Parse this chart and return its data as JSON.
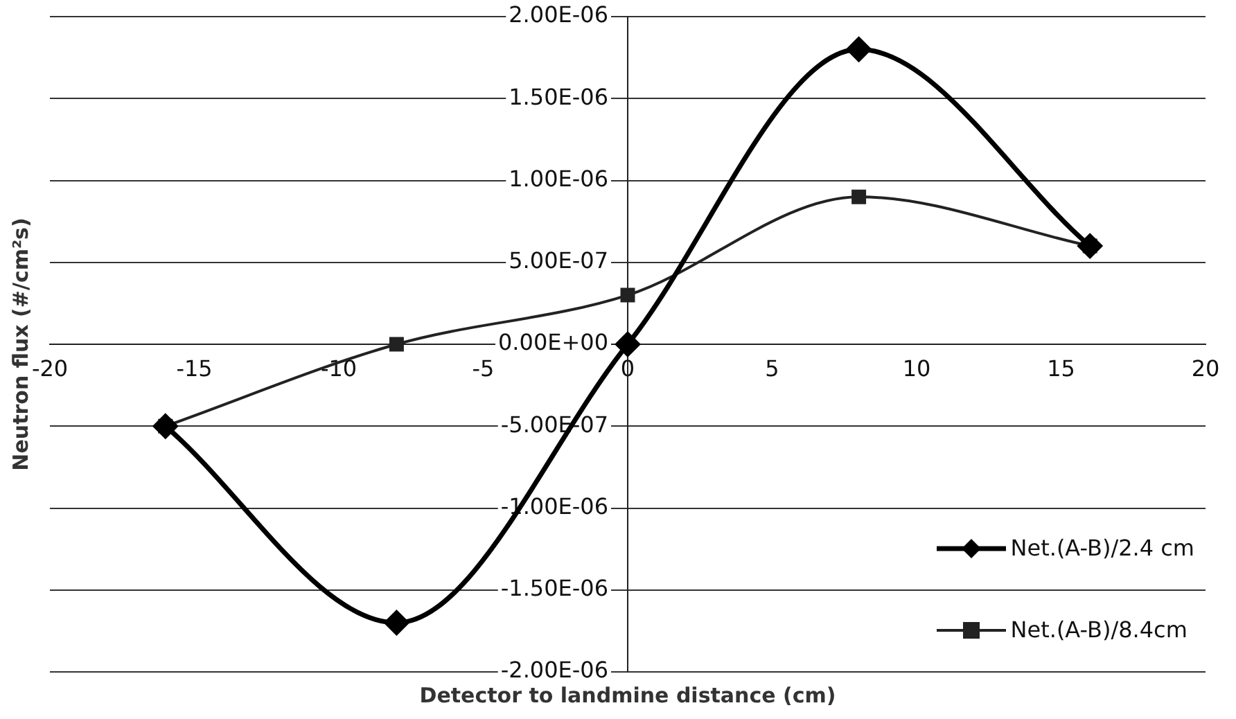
{
  "chart_data": {
    "type": "line",
    "xlabel": "Detector to landmine distance (cm)",
    "ylabel": "Neutron flux (#/cm²s)",
    "x": [
      -16,
      -8,
      0,
      8,
      16
    ],
    "series": [
      {
        "name": "Net.(A-B)/2.4 cm",
        "color": "#000000",
        "marker": "diamond",
        "values": [
          -5e-07,
          -1.7e-06,
          0,
          1.8e-06,
          6e-07
        ]
      },
      {
        "name": "Net.(A-B)/8.4cm",
        "color": "#222222",
        "marker": "square",
        "values": [
          -5e-07,
          0,
          3e-07,
          9e-07,
          6e-07
        ]
      }
    ],
    "xlim": [
      -20,
      20
    ],
    "xticks": [
      -20,
      -15,
      -10,
      -5,
      0,
      5,
      10,
      15,
      20
    ],
    "ylim": [
      -2e-06,
      2e-06
    ],
    "yticks": [
      {
        "value": -2e-06,
        "label": "-2.00E-06"
      },
      {
        "value": -1.5e-06,
        "label": "-1.50E-06"
      },
      {
        "value": -1e-06,
        "label": "-1.00E-06"
      },
      {
        "value": -5e-07,
        "label": "-5.00E-07"
      },
      {
        "value": 0,
        "label": "0.00E+00"
      },
      {
        "value": 5e-07,
        "label": "5.00E-07"
      },
      {
        "value": 1e-06,
        "label": "1.00E-06"
      },
      {
        "value": 1.5e-06,
        "label": "1.50E-06"
      },
      {
        "value": 2e-06,
        "label": "2.00E-06"
      }
    ],
    "grid": "y",
    "legend": "bottom right",
    "line_style": "solid"
  }
}
